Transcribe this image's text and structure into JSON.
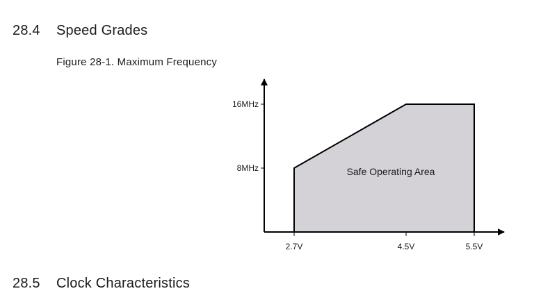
{
  "sections": [
    {
      "number": "28.4",
      "title": "Speed Grades"
    },
    {
      "number": "28.5",
      "title": "Clock Characteristics"
    }
  ],
  "figure": {
    "caption": "Figure 28-1. Maximum Frequency"
  },
  "chart_data": {
    "type": "area",
    "title": "",
    "xlabel": "",
    "ylabel": "",
    "x_ticks": [
      "2.7V",
      "4.5V",
      "5.5V"
    ],
    "y_ticks": [
      "8MHz",
      "16MHz"
    ],
    "x": [
      2.7,
      4.5,
      5.5
    ],
    "series": [
      {
        "name": "Safe Operating Area",
        "values": [
          8,
          16,
          16
        ]
      }
    ],
    "ylim": [
      0,
      16
    ],
    "area_label": "Safe Operating Area",
    "fill_color": "#d4d2d6",
    "stroke_color": "#000000"
  }
}
